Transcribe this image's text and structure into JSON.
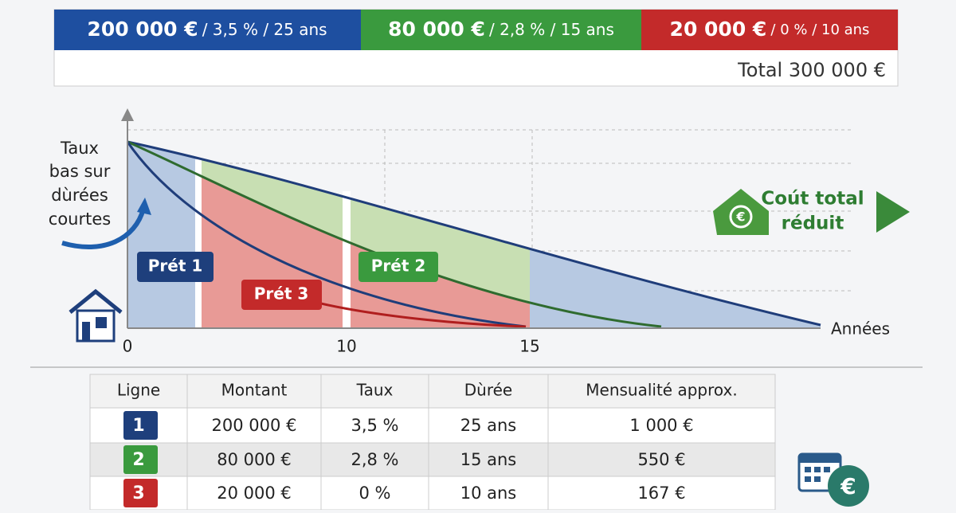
{
  "banner": {
    "segments": [
      {
        "amount": "200 000 €",
        "details": "/ 3,5 % / 25 ans"
      },
      {
        "amount": "80 000 €",
        "details": "/ 2,8 % / 15 ans"
      },
      {
        "amount": "20 000 €",
        "details": "/ 0 % / 10 ans"
      }
    ],
    "total": "Total 300 000 €"
  },
  "chart": {
    "note": [
      "Taux",
      "bas sur",
      "dùrées",
      "courtes"
    ],
    "x_ticks": [
      "0",
      "10",
      "15"
    ],
    "x_label": "Années",
    "loans": [
      "Prét 1",
      "Prét 3",
      "Prét 2"
    ],
    "callout": [
      "Coút total",
      "réduit"
    ]
  },
  "table": {
    "headers": [
      "Ligne",
      "Montant",
      "Taux",
      "Dùrée",
      "Mensualité approx."
    ],
    "rows": [
      [
        "1",
        "200 000 €",
        "3,5 %",
        "25 ans",
        "1 000 €"
      ],
      [
        "2",
        "80 000 €",
        "2,8 %",
        "15 ans",
        "550 €"
      ],
      [
        "3",
        "20 000 €",
        "0 %",
        "10 ans",
        "167 €"
      ]
    ]
  }
}
